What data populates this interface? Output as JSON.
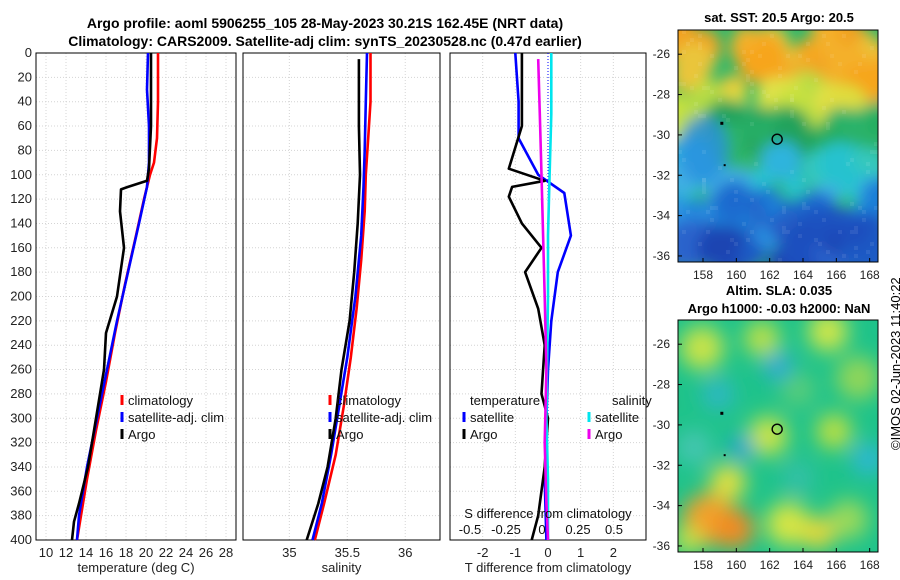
{
  "titles": {
    "line1": "Argo profile: aoml 5906255_105 28-May-2023 30.21S 162.45E (NRT data)",
    "line2": "Climatology: CARS2009. Satellite-adj clim: synTS_20230528.nc (0.47d earlier)"
  },
  "colors": {
    "climatology": "#ff0000",
    "satellite": "#0000ff",
    "argo": "#000000",
    "sal_satellite": "#00e5ee",
    "sal_argo": "#ee00ee"
  },
  "chart_data": [
    {
      "type": "line",
      "name": "temperature-profile",
      "xlabel": "temperature (deg C)",
      "ylabel": "pressure",
      "xlim": [
        9,
        29
      ],
      "ylim": [
        400,
        0
      ],
      "xticks": [
        10,
        12,
        14,
        16,
        18,
        20,
        22,
        24,
        26,
        28
      ],
      "yticks": [
        0,
        20,
        40,
        60,
        80,
        100,
        120,
        140,
        160,
        180,
        200,
        220,
        240,
        260,
        280,
        300,
        320,
        340,
        360,
        380,
        400
      ],
      "grid": true,
      "legend_position": "lower-right",
      "series": [
        {
          "name": "climatology",
          "color_key": "climatology",
          "points": [
            [
              21.2,
              0
            ],
            [
              21.2,
              40
            ],
            [
              21.1,
              70
            ],
            [
              20.8,
              90
            ],
            [
              20.4,
              100
            ],
            [
              19.8,
              120
            ],
            [
              19.0,
              150
            ],
            [
              17.9,
              190
            ],
            [
              16.9,
              230
            ],
            [
              16.0,
              270
            ],
            [
              15.0,
              310
            ],
            [
              14.1,
              350
            ],
            [
              13.3,
              390
            ],
            [
              13.1,
              400
            ]
          ]
        },
        {
          "name": "satellite-adj. clim",
          "color_key": "satellite",
          "points": [
            [
              20.2,
              0
            ],
            [
              20.1,
              30
            ],
            [
              20.3,
              60
            ],
            [
              20.3,
              90
            ],
            [
              20.1,
              110
            ],
            [
              19.3,
              140
            ],
            [
              18.2,
              180
            ],
            [
              17.1,
              220
            ],
            [
              16.1,
              260
            ],
            [
              15.1,
              300
            ],
            [
              14.1,
              340
            ],
            [
              13.3,
              380
            ],
            [
              13.1,
              400
            ]
          ]
        },
        {
          "name": "Argo",
          "color_key": "argo",
          "points": [
            [
              20.5,
              0
            ],
            [
              20.5,
              60
            ],
            [
              20.3,
              95
            ],
            [
              20.1,
              105
            ],
            [
              18.2,
              110
            ],
            [
              17.5,
              112
            ],
            [
              17.4,
              130
            ],
            [
              17.8,
              160
            ],
            [
              17.1,
              200
            ],
            [
              16.0,
              230
            ],
            [
              15.8,
              260
            ],
            [
              15.0,
              300
            ],
            [
              14.2,
              340
            ],
            [
              13.3,
              370
            ],
            [
              12.8,
              385
            ],
            [
              12.6,
              400
            ]
          ]
        }
      ]
    },
    {
      "type": "line",
      "name": "salinity-profile",
      "xlabel": "salinity",
      "xlim": [
        34.6,
        36.3
      ],
      "ylim": [
        400,
        0
      ],
      "xticks": [
        35,
        35.5,
        36
      ],
      "tick_labels": [
        "35",
        "35.5",
        "36"
      ],
      "grid": true,
      "legend_position": "lower-right",
      "series": [
        {
          "name": "climatology",
          "color_key": "climatology",
          "points": [
            [
              35.7,
              0
            ],
            [
              35.7,
              40
            ],
            [
              35.68,
              70
            ],
            [
              35.66,
              100
            ],
            [
              35.65,
              130
            ],
            [
              35.62,
              170
            ],
            [
              35.58,
              210
            ],
            [
              35.53,
              250
            ],
            [
              35.47,
              290
            ],
            [
              35.4,
              330
            ],
            [
              35.3,
              370
            ],
            [
              35.22,
              400
            ]
          ]
        },
        {
          "name": "satellite-adj. clim",
          "color_key": "satellite",
          "points": [
            [
              35.67,
              0
            ],
            [
              35.66,
              40
            ],
            [
              35.65,
              80
            ],
            [
              35.64,
              110
            ],
            [
              35.62,
              150
            ],
            [
              35.57,
              200
            ],
            [
              35.5,
              250
            ],
            [
              35.43,
              290
            ],
            [
              35.36,
              330
            ],
            [
              35.28,
              370
            ],
            [
              35.2,
              400
            ]
          ]
        },
        {
          "name": "Argo",
          "color_key": "argo",
          "points": [
            [
              35.6,
              5
            ],
            [
              35.6,
              60
            ],
            [
              35.61,
              100
            ],
            [
              35.59,
              140
            ],
            [
              35.56,
              180
            ],
            [
              35.52,
              220
            ],
            [
              35.45,
              260
            ],
            [
              35.4,
              300
            ],
            [
              35.33,
              340
            ],
            [
              35.25,
              370
            ],
            [
              35.15,
              400
            ]
          ]
        }
      ]
    },
    {
      "type": "line",
      "name": "difference-profile",
      "xlabel": "T difference from climatology",
      "top_label": "S difference from climatology",
      "xlim": [
        -3,
        3
      ],
      "ylim": [
        400,
        0
      ],
      "xticks": [
        -2,
        -1,
        0,
        1,
        2
      ],
      "top_ticks": [
        -0.5,
        -0.25,
        0,
        0.25,
        0.5
      ],
      "top_tick_labels": [
        "-0.5",
        "-0.25",
        "0",
        "0.25",
        "0.5"
      ],
      "grid": true,
      "legend_temperature_title": "temperature",
      "legend_salinity_title": "salinity",
      "series": [
        {
          "name": "T satellite",
          "group": "temperature",
          "legend_label": "satellite",
          "color_key": "satellite",
          "points": [
            [
              -1.0,
              0
            ],
            [
              -0.9,
              40
            ],
            [
              -0.9,
              70
            ],
            [
              -0.3,
              100
            ],
            [
              0.5,
              115
            ],
            [
              0.7,
              150
            ],
            [
              0.3,
              180
            ],
            [
              0.1,
              220
            ],
            [
              0.0,
              260
            ],
            [
              -0.05,
              300
            ],
            [
              -0.1,
              350
            ],
            [
              -0.05,
              400
            ]
          ]
        },
        {
          "name": "T Argo",
          "group": "temperature",
          "legend_label": "Argo",
          "color_key": "argo",
          "points": [
            [
              -0.8,
              0
            ],
            [
              -0.8,
              60
            ],
            [
              -1.2,
              95
            ],
            [
              -0.1,
              105
            ],
            [
              -1.1,
              110
            ],
            [
              -1.2,
              118
            ],
            [
              -0.8,
              140
            ],
            [
              -0.2,
              160
            ],
            [
              -0.7,
              180
            ],
            [
              -0.3,
              210
            ],
            [
              -0.1,
              240
            ],
            [
              -0.2,
              280
            ],
            [
              0.0,
              300
            ],
            [
              -0.1,
              340
            ],
            [
              -0.3,
              380
            ],
            [
              -0.5,
              400
            ]
          ]
        },
        {
          "name": "S satellite",
          "group": "salinity",
          "legend_label": "satellite",
          "color_key": "sal_satellite",
          "points": [
            [
              0.1,
              0
            ],
            [
              0.1,
              50
            ],
            [
              0.05,
              100
            ],
            [
              0.0,
              150
            ],
            [
              0.0,
              200
            ],
            [
              -0.05,
              300
            ],
            [
              0.0,
              350
            ],
            [
              0.0,
              400
            ]
          ]
        },
        {
          "name": "S Argo",
          "group": "salinity",
          "legend_label": "Argo",
          "color_key": "sal_argo",
          "points": [
            [
              -0.3,
              5
            ],
            [
              -0.25,
              50
            ],
            [
              -0.2,
              100
            ],
            [
              -0.15,
              150
            ],
            [
              -0.1,
              200
            ],
            [
              -0.05,
              260
            ],
            [
              -0.1,
              320
            ],
            [
              -0.05,
              370
            ],
            [
              0.0,
              400
            ]
          ]
        }
      ]
    },
    {
      "type": "heatmap",
      "name": "sst-map",
      "title": "sat. SST: 20.5 Argo: 20.5",
      "xlim": [
        156.5,
        168.5
      ],
      "ylim": [
        -36.3,
        -24.8
      ],
      "xticks": [
        158,
        160,
        162,
        164,
        166,
        168
      ],
      "yticks": [
        -26,
        -28,
        -30,
        -32,
        -34,
        -36
      ],
      "argo_location": [
        162.45,
        -30.21
      ]
    },
    {
      "type": "heatmap",
      "name": "sla-map",
      "title_line1": "Altim. SLA: 0.035",
      "title_line2": "Argo h1000: -0.03 h2000: NaN",
      "xlim": [
        156.5,
        168.5
      ],
      "ylim": [
        -36.3,
        -24.8
      ],
      "xticks": [
        158,
        160,
        162,
        164,
        166,
        168
      ],
      "yticks": [
        -26,
        -28,
        -30,
        -32,
        -34,
        -36
      ],
      "argo_location": [
        162.45,
        -30.21
      ]
    }
  ],
  "credit": "©IMOS 02-Jun-2023 11:40:22"
}
